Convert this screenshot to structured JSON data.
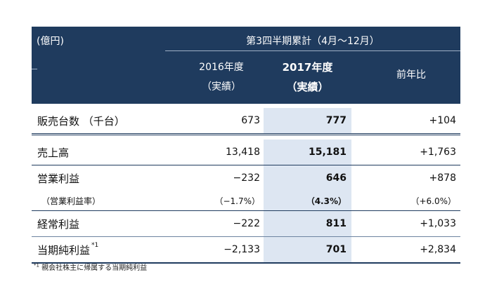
{
  "header": {
    "unit": "(億円)",
    "period": "第3四半期累計（4月～12月）",
    "col_2016_line1": "2016年度",
    "col_2016_line2": "（実績）",
    "col_2017_line1": "2017年度",
    "col_2017_line2": "（実績）",
    "col_yoy": "前年比"
  },
  "rows": [
    {
      "label": "販売台数 （千台）",
      "v2016": "673",
      "v2017": "777",
      "yoy": "+104"
    },
    {
      "label": "売上高",
      "v2016": "13,418",
      "v2017": "15,181",
      "yoy": "+1,763"
    },
    {
      "label": "営業利益",
      "v2016": "−232",
      "v2017": "646",
      "yoy": "+878"
    },
    {
      "label": "（営業利益率）",
      "v2016": "（−1.7%）",
      "v2017": "（4.3%）",
      "yoy": "（+6.0%）"
    },
    {
      "label": "経常利益",
      "v2016": "−222",
      "v2017": "811",
      "yoy": "+1,033"
    },
    {
      "label": "当期純利益",
      "note_mark": "*1",
      "v2016": "−2,133",
      "v2017": "701",
      "yoy": "+2,834"
    }
  ],
  "footnote": {
    "mark": "*1",
    "text": " 親会社株主に帰属する当期純利益"
  },
  "colors": {
    "header_bg": "#1f3b5e",
    "highlight": "#dde6f2"
  }
}
